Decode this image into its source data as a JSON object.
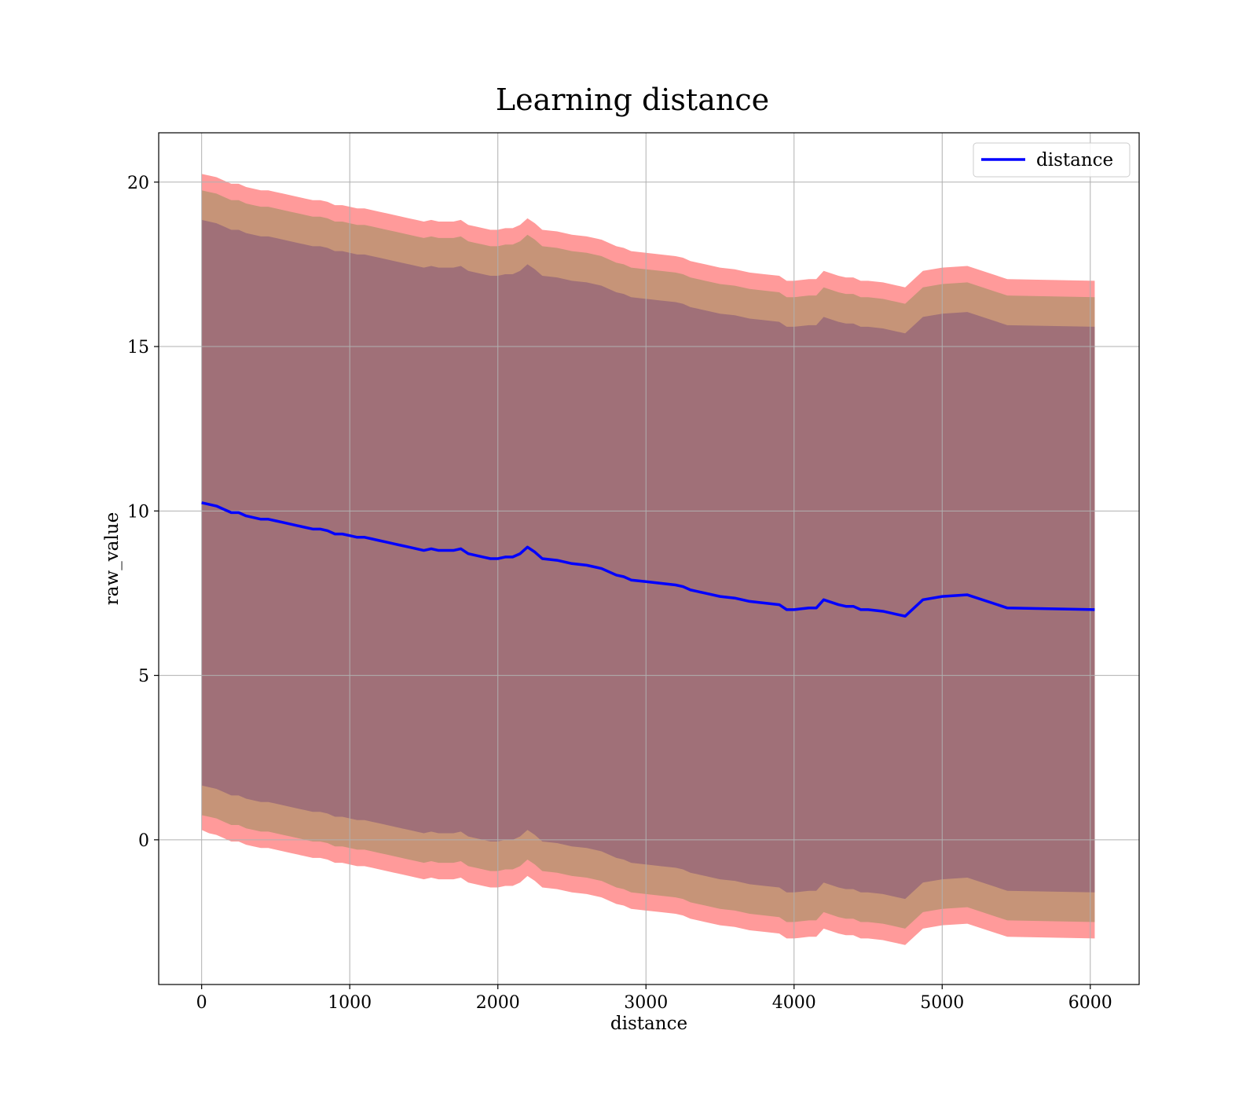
{
  "chart_data": {
    "type": "line",
    "title": "Learning distance",
    "xlabel": "distance",
    "ylabel": "raw_value",
    "xlim": [
      -290,
      6330
    ],
    "ylim": [
      -4.4,
      21.5
    ],
    "xticks": [
      0,
      1000,
      2000,
      3000,
      4000,
      5000,
      6000
    ],
    "yticks": [
      0,
      5,
      10,
      15,
      20
    ],
    "grid": true,
    "legend": {
      "position": "top-right",
      "entries": [
        "distance"
      ]
    },
    "colors": {
      "line": "#0000ff",
      "band_outer": "#ff9a9a",
      "band_middle": "#c69478",
      "band_inner": "#a07078"
    },
    "series": [
      {
        "name": "distance",
        "x": [
          0,
          50,
          100,
          150,
          200,
          250,
          300,
          350,
          400,
          450,
          500,
          550,
          600,
          650,
          700,
          750,
          800,
          850,
          900,
          950,
          1000,
          1050,
          1100,
          1150,
          1200,
          1250,
          1300,
          1350,
          1400,
          1450,
          1500,
          1550,
          1600,
          1650,
          1700,
          1750,
          1800,
          1850,
          1900,
          1950,
          2000,
          2050,
          2100,
          2150,
          2200,
          2250,
          2300,
          2400,
          2500,
          2600,
          2700,
          2800,
          2850,
          2900,
          3000,
          3100,
          3200,
          3250,
          3300,
          3400,
          3500,
          3600,
          3700,
          3800,
          3900,
          3950,
          4000,
          4100,
          4150,
          4200,
          4300,
          4350,
          4400,
          4450,
          4500,
          4600,
          4650,
          4700,
          4750,
          4870,
          5000,
          5170,
          5440,
          6030
        ],
        "y": [
          10.25,
          10.2,
          10.15,
          10.05,
          9.95,
          9.95,
          9.85,
          9.8,
          9.75,
          9.75,
          9.7,
          9.65,
          9.6,
          9.55,
          9.5,
          9.45,
          9.45,
          9.4,
          9.3,
          9.3,
          9.25,
          9.2,
          9.2,
          9.15,
          9.1,
          9.05,
          9.0,
          8.95,
          8.9,
          8.85,
          8.8,
          8.85,
          8.8,
          8.8,
          8.8,
          8.85,
          8.7,
          8.65,
          8.6,
          8.55,
          8.55,
          8.6,
          8.6,
          8.7,
          8.9,
          8.75,
          8.55,
          8.5,
          8.4,
          8.35,
          8.25,
          8.05,
          8.0,
          7.9,
          7.85,
          7.8,
          7.75,
          7.7,
          7.6,
          7.5,
          7.4,
          7.35,
          7.25,
          7.2,
          7.15,
          7.0,
          7.0,
          7.05,
          7.05,
          7.3,
          7.15,
          7.1,
          7.1,
          7.0,
          7.0,
          6.95,
          6.9,
          6.85,
          6.8,
          7.3,
          7.4,
          7.45,
          7.05,
          7.0
        ]
      }
    ],
    "bands": [
      {
        "label": "outer",
        "lower": [
          0.3,
          0.2,
          0.15,
          0.05,
          -0.05,
          -0.05,
          -0.15,
          -0.2,
          -0.25,
          -0.25,
          -0.3,
          -0.35,
          -0.4,
          -0.45,
          -0.5,
          -0.55,
          -0.55,
          -0.6,
          -0.7,
          -0.7,
          -0.75,
          -0.8,
          -0.8,
          -0.85,
          -0.9,
          -0.95,
          -1.0,
          -1.05,
          -1.1,
          -1.15,
          -1.2,
          -1.15,
          -1.2,
          -1.2,
          -1.2,
          -1.15,
          -1.3,
          -1.35,
          -1.4,
          -1.45,
          -1.45,
          -1.4,
          -1.4,
          -1.3,
          -1.1,
          -1.25,
          -1.45,
          -1.5,
          -1.6,
          -1.65,
          -1.75,
          -1.95,
          -2.0,
          -2.1,
          -2.15,
          -2.2,
          -2.25,
          -2.3,
          -2.4,
          -2.5,
          -2.6,
          -2.65,
          -2.75,
          -2.8,
          -2.85,
          -3.0,
          -3.0,
          -2.95,
          -2.95,
          -2.7,
          -2.85,
          -2.9,
          -2.9,
          -3.0,
          -3.0,
          -3.05,
          -3.1,
          -3.15,
          -3.2,
          -2.7,
          -2.6,
          -2.55,
          -2.95,
          -3.0
        ],
        "upper": [
          20.25,
          20.2,
          20.15,
          20.05,
          19.95,
          19.95,
          19.85,
          19.8,
          19.75,
          19.75,
          19.7,
          19.65,
          19.6,
          19.55,
          19.5,
          19.45,
          19.45,
          19.4,
          19.3,
          19.3,
          19.25,
          19.2,
          19.2,
          19.15,
          19.1,
          19.05,
          19.0,
          18.95,
          18.9,
          18.85,
          18.8,
          18.85,
          18.8,
          18.8,
          18.8,
          18.85,
          18.7,
          18.65,
          18.6,
          18.55,
          18.55,
          18.6,
          18.6,
          18.7,
          18.9,
          18.75,
          18.55,
          18.5,
          18.4,
          18.35,
          18.25,
          18.05,
          18.0,
          17.9,
          17.85,
          17.8,
          17.75,
          17.7,
          17.6,
          17.5,
          17.4,
          17.35,
          17.25,
          17.2,
          17.15,
          17.0,
          17.0,
          17.05,
          17.05,
          17.3,
          17.15,
          17.1,
          17.1,
          17.0,
          17.0,
          16.95,
          16.9,
          16.85,
          16.8,
          17.3,
          17.4,
          17.45,
          17.05,
          17.0
        ]
      },
      {
        "label": "middle",
        "lower": [
          0.75,
          0.7,
          0.65,
          0.55,
          0.45,
          0.45,
          0.35,
          0.3,
          0.25,
          0.25,
          0.2,
          0.15,
          0.1,
          0.05,
          0.0,
          -0.05,
          -0.05,
          -0.1,
          -0.2,
          -0.2,
          -0.25,
          -0.3,
          -0.3,
          -0.35,
          -0.4,
          -0.45,
          -0.5,
          -0.55,
          -0.6,
          -0.65,
          -0.7,
          -0.65,
          -0.7,
          -0.7,
          -0.7,
          -0.65,
          -0.8,
          -0.85,
          -0.9,
          -0.95,
          -0.95,
          -0.9,
          -0.9,
          -0.8,
          -0.6,
          -0.75,
          -0.95,
          -1.0,
          -1.1,
          -1.15,
          -1.25,
          -1.45,
          -1.5,
          -1.6,
          -1.65,
          -1.7,
          -1.75,
          -1.8,
          -1.9,
          -2.0,
          -2.1,
          -2.15,
          -2.25,
          -2.3,
          -2.35,
          -2.5,
          -2.5,
          -2.45,
          -2.45,
          -2.2,
          -2.35,
          -2.4,
          -2.4,
          -2.5,
          -2.5,
          -2.55,
          -2.6,
          -2.65,
          -2.7,
          -2.2,
          -2.1,
          -2.05,
          -2.45,
          -2.5
        ],
        "upper": [
          19.75,
          19.7,
          19.65,
          19.55,
          19.45,
          19.45,
          19.35,
          19.3,
          19.25,
          19.25,
          19.2,
          19.15,
          19.1,
          19.05,
          19.0,
          18.95,
          18.95,
          18.9,
          18.8,
          18.8,
          18.75,
          18.7,
          18.7,
          18.65,
          18.6,
          18.55,
          18.5,
          18.45,
          18.4,
          18.35,
          18.3,
          18.35,
          18.3,
          18.3,
          18.3,
          18.35,
          18.2,
          18.15,
          18.1,
          18.05,
          18.05,
          18.1,
          18.1,
          18.2,
          18.4,
          18.25,
          18.05,
          18.0,
          17.9,
          17.85,
          17.75,
          17.55,
          17.5,
          17.4,
          17.35,
          17.3,
          17.25,
          17.2,
          17.1,
          17.0,
          16.9,
          16.85,
          16.75,
          16.7,
          16.65,
          16.5,
          16.5,
          16.55,
          16.55,
          16.8,
          16.65,
          16.6,
          16.6,
          16.5,
          16.5,
          16.45,
          16.4,
          16.35,
          16.3,
          16.8,
          16.9,
          16.95,
          16.55,
          16.5
        ]
      },
      {
        "label": "inner",
        "lower": [
          1.65,
          1.6,
          1.55,
          1.45,
          1.35,
          1.35,
          1.25,
          1.2,
          1.15,
          1.15,
          1.1,
          1.05,
          1.0,
          0.95,
          0.9,
          0.85,
          0.85,
          0.8,
          0.7,
          0.7,
          0.65,
          0.6,
          0.6,
          0.55,
          0.5,
          0.45,
          0.4,
          0.35,
          0.3,
          0.25,
          0.2,
          0.25,
          0.2,
          0.2,
          0.2,
          0.25,
          0.1,
          0.05,
          0.0,
          -0.05,
          -0.05,
          0.0,
          0.0,
          0.1,
          0.3,
          0.15,
          -0.05,
          -0.1,
          -0.2,
          -0.25,
          -0.35,
          -0.55,
          -0.6,
          -0.7,
          -0.75,
          -0.8,
          -0.85,
          -0.9,
          -1.0,
          -1.1,
          -1.2,
          -1.25,
          -1.35,
          -1.4,
          -1.45,
          -1.6,
          -1.6,
          -1.55,
          -1.55,
          -1.3,
          -1.45,
          -1.5,
          -1.5,
          -1.6,
          -1.6,
          -1.65,
          -1.7,
          -1.75,
          -1.8,
          -1.3,
          -1.2,
          -1.15,
          -1.55,
          -1.6
        ],
        "upper": [
          18.85,
          18.8,
          18.75,
          18.65,
          18.55,
          18.55,
          18.45,
          18.4,
          18.35,
          18.35,
          18.3,
          18.25,
          18.2,
          18.15,
          18.1,
          18.05,
          18.05,
          18.0,
          17.9,
          17.9,
          17.85,
          17.8,
          17.8,
          17.75,
          17.7,
          17.65,
          17.6,
          17.55,
          17.5,
          17.45,
          17.4,
          17.45,
          17.4,
          17.4,
          17.4,
          17.45,
          17.3,
          17.25,
          17.2,
          17.15,
          17.15,
          17.2,
          17.2,
          17.3,
          17.5,
          17.35,
          17.15,
          17.1,
          17.0,
          16.95,
          16.85,
          16.65,
          16.6,
          16.5,
          16.45,
          16.4,
          16.35,
          16.3,
          16.2,
          16.1,
          16.0,
          15.95,
          15.85,
          15.8,
          15.75,
          15.6,
          15.6,
          15.65,
          15.65,
          15.9,
          15.75,
          15.7,
          15.7,
          15.6,
          15.6,
          15.55,
          15.5,
          15.45,
          15.4,
          15.9,
          16.0,
          16.05,
          15.65,
          15.6
        ]
      }
    ]
  }
}
